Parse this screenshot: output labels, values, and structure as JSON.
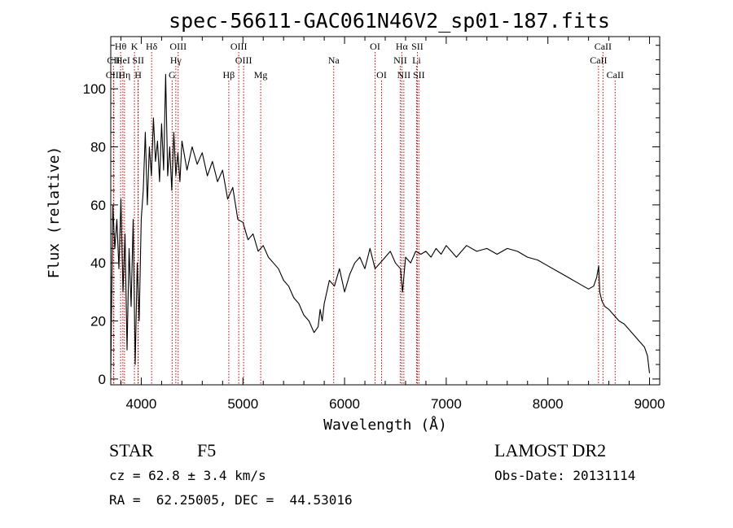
{
  "chart_data": {
    "type": "line",
    "title": "spec-56611-GAC061N46V2_sp01-187.fits",
    "xlabel": "Wavelength (Å)",
    "ylabel": "Flux (relative)",
    "xlim": [
      3700,
      9100
    ],
    "ylim": [
      -2,
      118
    ],
    "xticks": [
      4000,
      5000,
      6000,
      7000,
      8000,
      9000
    ],
    "yticks": [
      0,
      20,
      40,
      60,
      80,
      100
    ],
    "grid": false,
    "line_color": "#000000",
    "marker_color": "#cc0000",
    "spectrum": {
      "name": "flux",
      "x": [
        3700,
        3720,
        3740,
        3760,
        3780,
        3800,
        3820,
        3840,
        3860,
        3880,
        3900,
        3920,
        3940,
        3960,
        3980,
        4000,
        4020,
        4040,
        4060,
        4080,
        4100,
        4120,
        4140,
        4160,
        4180,
        4200,
        4220,
        4240,
        4260,
        4280,
        4300,
        4320,
        4340,
        4360,
        4380,
        4400,
        4450,
        4500,
        4550,
        4600,
        4650,
        4700,
        4750,
        4800,
        4850,
        4900,
        4950,
        5000,
        5050,
        5100,
        5150,
        5200,
        5250,
        5300,
        5350,
        5400,
        5450,
        5500,
        5550,
        5600,
        5650,
        5700,
        5740,
        5760,
        5780,
        5800,
        5850,
        5900,
        5950,
        6000,
        6050,
        6100,
        6150,
        6200,
        6250,
        6300,
        6350,
        6400,
        6450,
        6500,
        6550,
        6570,
        6600,
        6650,
        6700,
        6750,
        6800,
        6850,
        6900,
        6950,
        7000,
        7050,
        7100,
        7150,
        7200,
        7300,
        7400,
        7500,
        7600,
        7700,
        7800,
        7900,
        8000,
        8100,
        8200,
        8300,
        8400,
        8450,
        8480,
        8500,
        8510,
        8530,
        8560,
        8600,
        8650,
        8700,
        8750,
        8800,
        8850,
        8900,
        8950,
        8980,
        9000
      ],
      "y": [
        2,
        60,
        45,
        55,
        38,
        62,
        30,
        50,
        10,
        45,
        25,
        55,
        5,
        40,
        20,
        55,
        65,
        85,
        60,
        80,
        70,
        90,
        75,
        82,
        68,
        88,
        72,
        105,
        70,
        80,
        65,
        85,
        70,
        78,
        68,
        82,
        72,
        80,
        74,
        78,
        70,
        75,
        68,
        72,
        62,
        66,
        55,
        54,
        48,
        50,
        44,
        46,
        42,
        40,
        38,
        34,
        32,
        28,
        26,
        22,
        20,
        16,
        18,
        24,
        20,
        26,
        34,
        32,
        38,
        30,
        36,
        40,
        42,
        38,
        45,
        38,
        40,
        42,
        44,
        40,
        38,
        30,
        42,
        40,
        44,
        43,
        44,
        42,
        45,
        43,
        46,
        44,
        42,
        44,
        46,
        44,
        45,
        43,
        45,
        44,
        42,
        41,
        39,
        37,
        35,
        33,
        31,
        32,
        35,
        39,
        30,
        27,
        25,
        24,
        22,
        20,
        19,
        17,
        15,
        13,
        11,
        8,
        2
      ]
    },
    "lines": [
      {
        "label": "Hθ",
        "x": 3797,
        "row": 1
      },
      {
        "label": "CII",
        "x": 3727,
        "row": 2
      },
      {
        "label": "CIII",
        "x": 3730,
        "row": 3
      },
      {
        "label": "HeI",
        "x": 3819,
        "row": 2
      },
      {
        "label": "Hη",
        "x": 3835,
        "row": 3
      },
      {
        "label": "K",
        "x": 3933,
        "row": 1
      },
      {
        "label": "SII",
        "x": 3970,
        "row": 2
      },
      {
        "label": "H",
        "x": 3969,
        "row": 3
      },
      {
        "label": "Hδ",
        "x": 4102,
        "row": 1
      },
      {
        "label": "OIII",
        "x": 4363,
        "row": 1
      },
      {
        "label": "Hγ",
        "x": 4340,
        "row": 2
      },
      {
        "label": "G",
        "x": 4304,
        "row": 3
      },
      {
        "label": "OIII",
        "x": 4959,
        "row": 1
      },
      {
        "label": "OIII",
        "x": 5007,
        "row": 2
      },
      {
        "label": "Hβ",
        "x": 4861,
        "row": 3
      },
      {
        "label": "Mg",
        "x": 5175,
        "row": 3
      },
      {
        "label": "Na",
        "x": 5893,
        "row": 2
      },
      {
        "label": "OI",
        "x": 6300,
        "row": 1
      },
      {
        "label": "OI",
        "x": 6364,
        "row": 3
      },
      {
        "label": "Hα",
        "x": 6563,
        "row": 1
      },
      {
        "label": "NII",
        "x": 6548,
        "row": 2
      },
      {
        "label": "NII",
        "x": 6583,
        "row": 3
      },
      {
        "label": "SII",
        "x": 6716,
        "row": 1
      },
      {
        "label": "Li",
        "x": 6708,
        "row": 2
      },
      {
        "label": "SII",
        "x": 6731,
        "row": 3
      },
      {
        "label": "CaII",
        "x": 8542,
        "row": 1
      },
      {
        "label": "CaII",
        "x": 8498,
        "row": 2
      },
      {
        "label": "CaII",
        "x": 8662,
        "row": 3
      }
    ]
  },
  "info": {
    "object_class": "STAR",
    "subclass": "F5",
    "survey": "LAMOST DR2",
    "redshift_line": "cz = 62.8 ± 3.4 km/s",
    "obs_date_line": "Obs-Date: 20131114",
    "coords_line": "RA =  62.25005, DEC =  44.53016"
  }
}
